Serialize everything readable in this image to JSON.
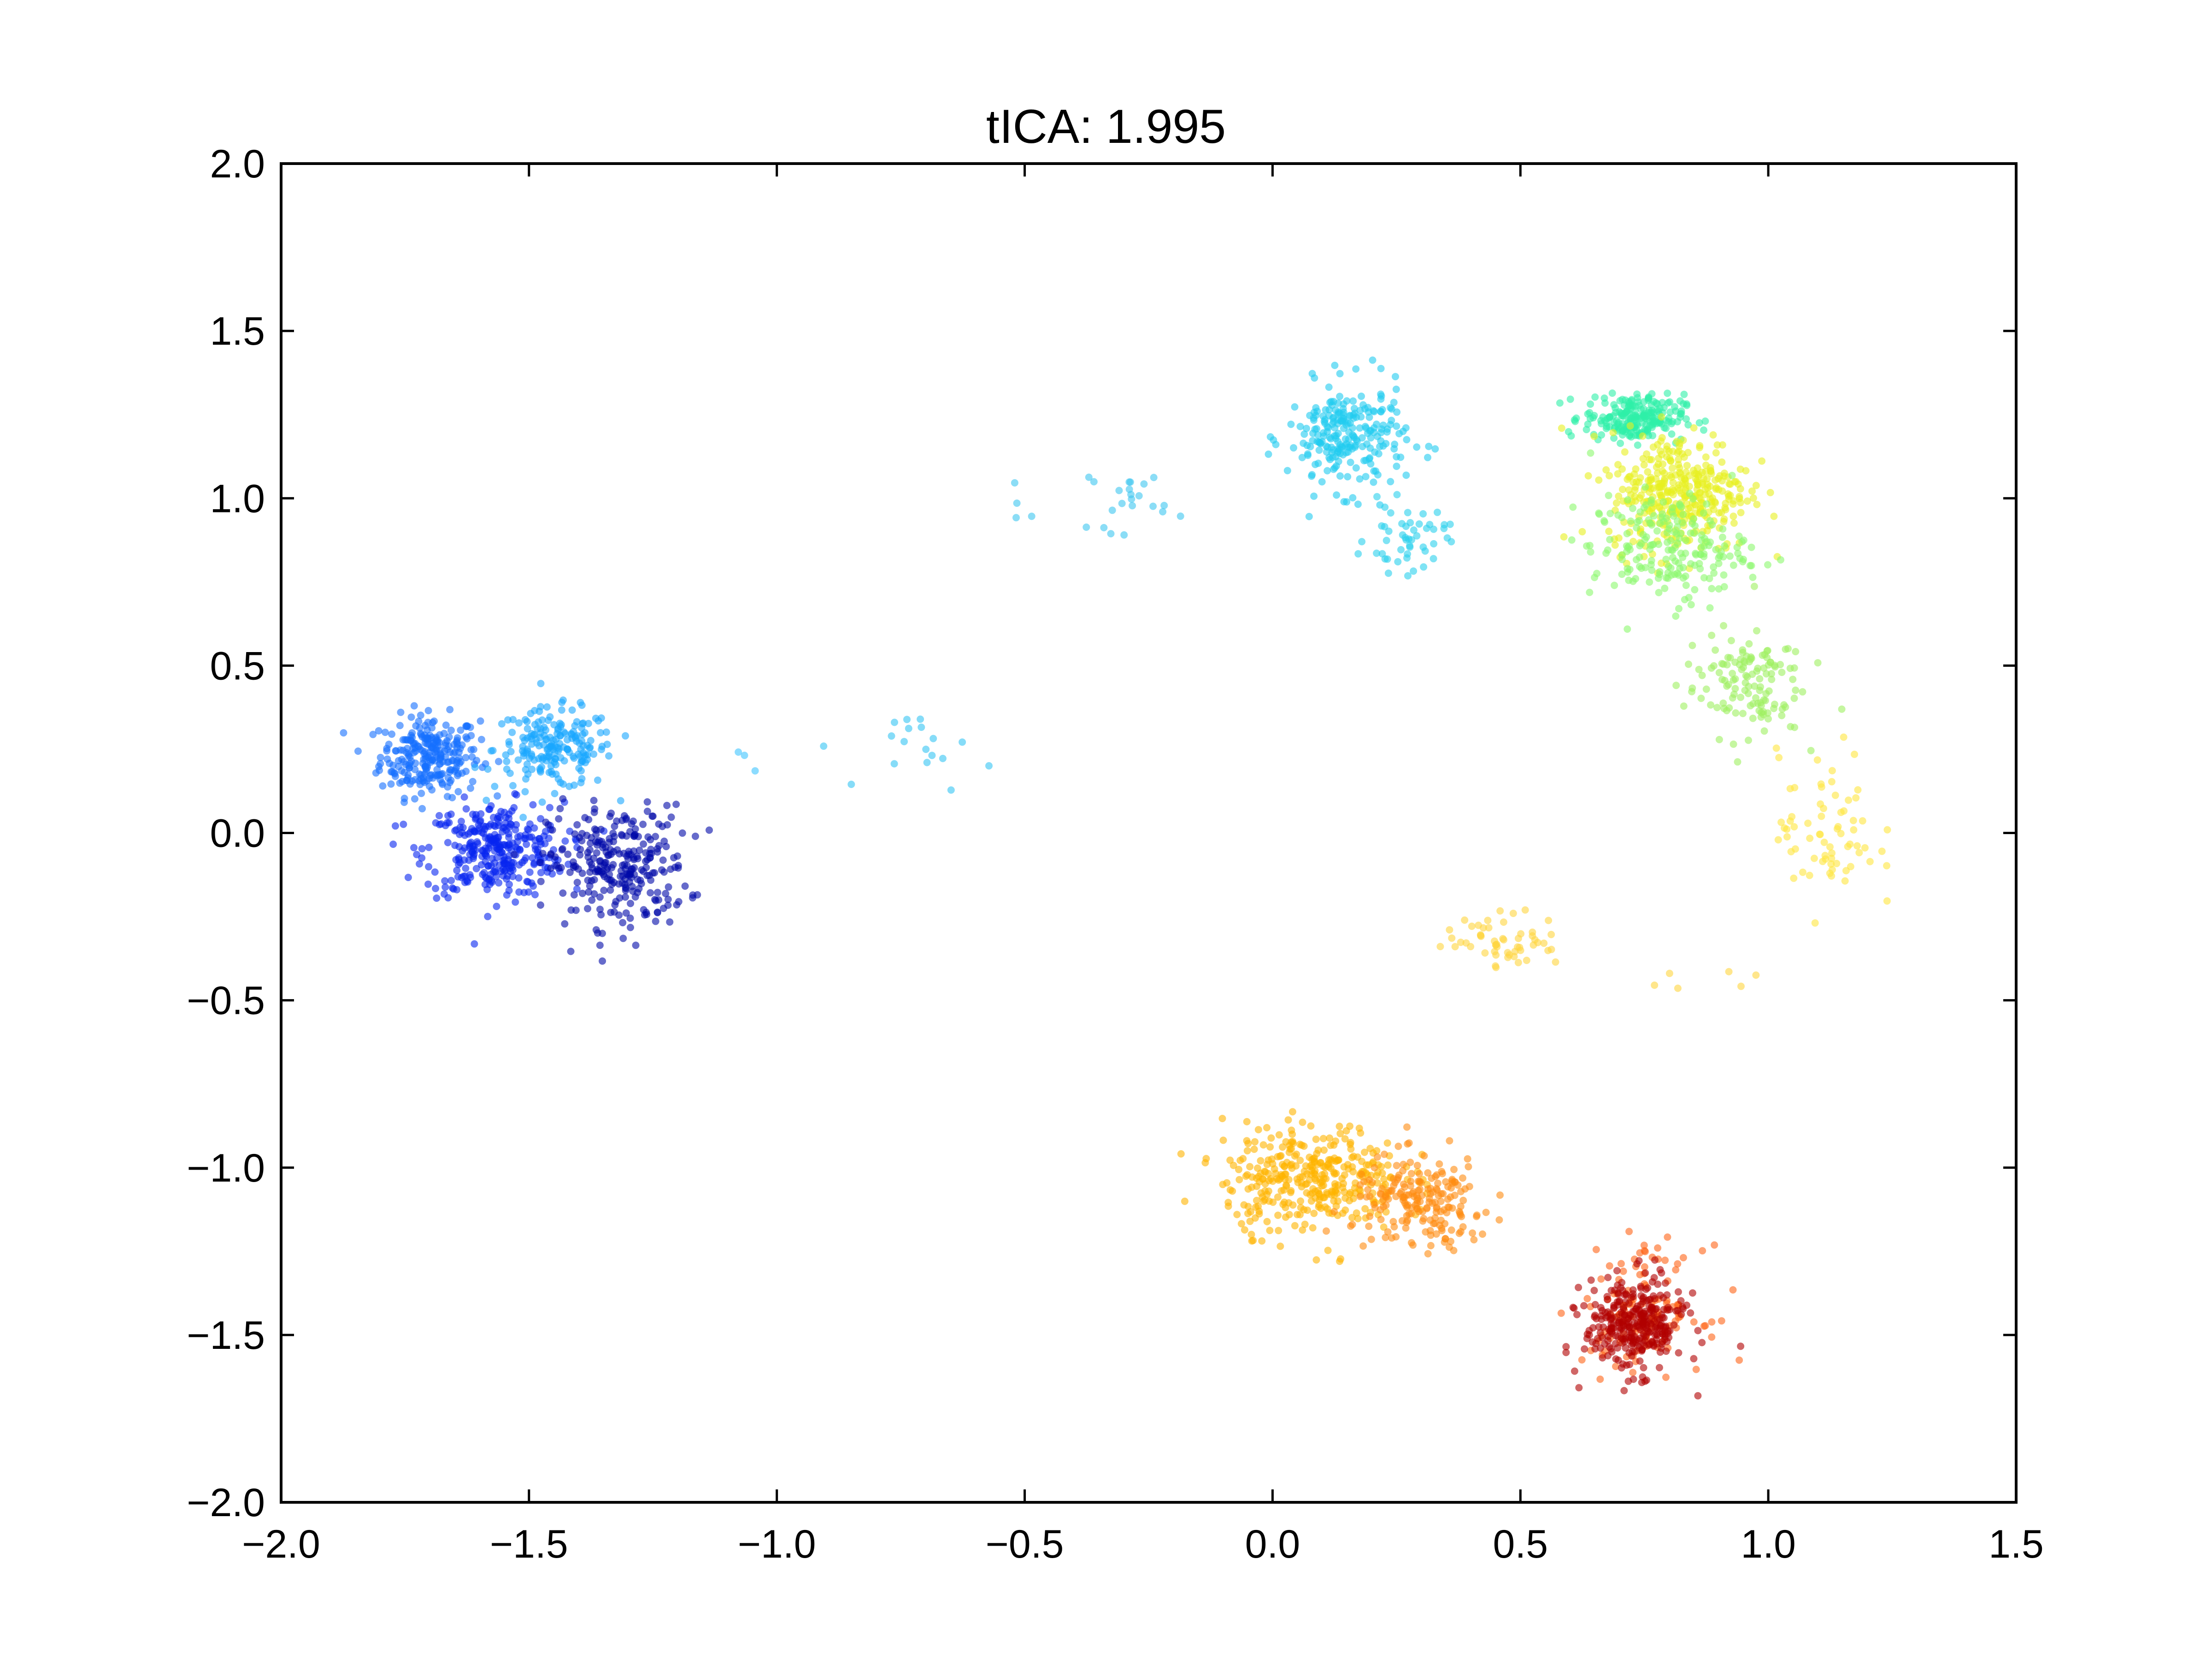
{
  "chart_data": {
    "type": "scatter",
    "title": "tICA: 1.995",
    "xlabel": "",
    "ylabel": "",
    "xlim": [
      -2.0,
      1.5
    ],
    "ylim": [
      -2.0,
      2.0
    ],
    "x_ticks": [
      -2.0,
      -1.5,
      -1.0,
      -0.5,
      0.0,
      0.5,
      1.0,
      1.5
    ],
    "y_ticks": [
      -2.0,
      -1.5,
      -1.0,
      -0.5,
      0.0,
      0.5,
      1.0,
      1.5,
      2.0
    ],
    "x_tick_labels": [
      "−2.0",
      "−1.5",
      "−1.0",
      "−0.5",
      "0.0",
      "0.5",
      "1.0",
      "1.5"
    ],
    "y_tick_labels": [
      "−2.0",
      "−1.5",
      "−1.0",
      "−0.5",
      "0.0",
      "0.5",
      "1.0",
      "1.5",
      "2.0"
    ],
    "grid": false,
    "legend": "none",
    "colormap": "jet",
    "marker_alpha": 0.6,
    "clusters": [
      {
        "x": -1.7,
        "y": 0.23,
        "sx": 0.05,
        "sy": 0.06,
        "n": 260,
        "color": "#1570ff"
      },
      {
        "x": -1.45,
        "y": 0.25,
        "sx": 0.06,
        "sy": 0.06,
        "n": 200,
        "color": "#19a6ff"
      },
      {
        "x": -1.57,
        "y": -0.05,
        "sx": 0.07,
        "sy": 0.07,
        "n": 320,
        "color": "#0625f0"
      },
      {
        "x": -1.32,
        "y": -0.1,
        "sx": 0.07,
        "sy": 0.09,
        "n": 280,
        "color": "#0009a8"
      },
      {
        "x": -1.05,
        "y": 0.2,
        "sx": 0.02,
        "sy": 0.02,
        "n": 3,
        "color": "#40c4ff"
      },
      {
        "x": -0.68,
        "y": 0.25,
        "sx": 0.06,
        "sy": 0.06,
        "n": 18,
        "color": "#36c4f4"
      },
      {
        "x": -0.29,
        "y": 1.0,
        "sx": 0.04,
        "sy": 0.05,
        "n": 22,
        "color": "#3ec6f0"
      },
      {
        "x": -0.5,
        "y": 0.98,
        "sx": 0.05,
        "sy": 0.03,
        "n": 4,
        "color": "#3ec6f0"
      },
      {
        "x": 0.15,
        "y": 1.18,
        "sx": 0.06,
        "sy": 0.08,
        "n": 240,
        "color": "#22ccf0"
      },
      {
        "x": 0.27,
        "y": 0.88,
        "sx": 0.04,
        "sy": 0.05,
        "n": 50,
        "color": "#2ad0ec"
      },
      {
        "x": 0.73,
        "y": 1.24,
        "sx": 0.05,
        "sy": 0.035,
        "n": 220,
        "color": "#2ef0a8"
      },
      {
        "x": 0.82,
        "y": 1.02,
        "sx": 0.07,
        "sy": 0.09,
        "n": 360,
        "color": "#e8f020"
      },
      {
        "x": 0.8,
        "y": 0.85,
        "sx": 0.08,
        "sy": 0.08,
        "n": 200,
        "color": "#8cf86e"
      },
      {
        "x": 0.95,
        "y": 0.45,
        "sx": 0.06,
        "sy": 0.08,
        "n": 130,
        "color": "#9ef060"
      },
      {
        "x": 1.12,
        "y": 0.0,
        "sx": 0.05,
        "sy": 0.12,
        "n": 70,
        "color": "#ffe640"
      },
      {
        "x": 0.47,
        "y": -0.32,
        "sx": 0.06,
        "sy": 0.04,
        "n": 55,
        "color": "#ffd640"
      },
      {
        "x": 0.85,
        "y": -0.45,
        "sx": 0.08,
        "sy": 0.06,
        "n": 6,
        "color": "#ffd640"
      },
      {
        "x": 0.08,
        "y": -1.03,
        "sx": 0.09,
        "sy": 0.08,
        "n": 360,
        "color": "#ffb400"
      },
      {
        "x": 0.3,
        "y": -1.11,
        "sx": 0.07,
        "sy": 0.07,
        "n": 200,
        "color": "#ff8c10"
      },
      {
        "x": 0.75,
        "y": -1.42,
        "sx": 0.06,
        "sy": 0.09,
        "n": 120,
        "color": "#ff6418"
      },
      {
        "x": 0.73,
        "y": -1.47,
        "sx": 0.05,
        "sy": 0.07,
        "n": 320,
        "color": "#b00000"
      }
    ]
  }
}
